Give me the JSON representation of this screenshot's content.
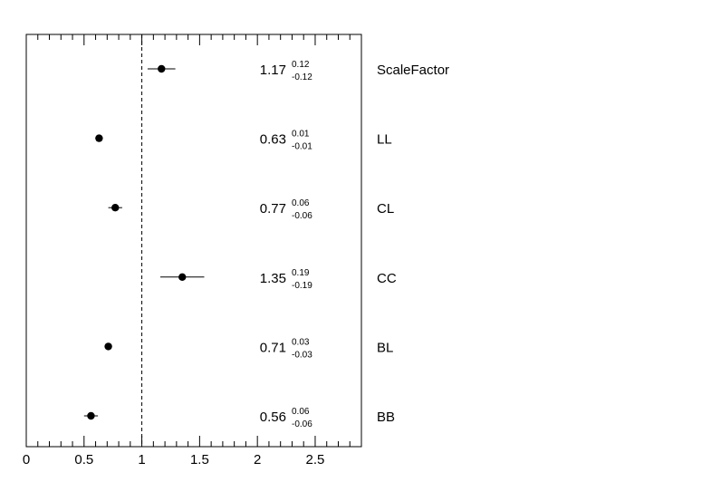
{
  "chart_data": {
    "type": "scatter",
    "title": "",
    "xlabel": "",
    "ylabel": "",
    "xlim": [
      0,
      2.9
    ],
    "x_ticks": [
      0,
      0.5,
      1,
      1.5,
      2,
      2.5
    ],
    "x_tick_labels": [
      "0",
      "0.5",
      "1",
      "1.5",
      "2",
      "2.5"
    ],
    "reference_line": 1,
    "grid": false,
    "points": [
      {
        "label": "ScaleFactor",
        "value": 1.17,
        "err_up": 0.12,
        "err_down": -0.12,
        "value_text": "1.17",
        "err_up_text": "0.12",
        "err_down_text": "-0.12"
      },
      {
        "label": "LL",
        "value": 0.63,
        "err_up": 0.01,
        "err_down": -0.01,
        "value_text": "0.63",
        "err_up_text": "0.01",
        "err_down_text": "-0.01"
      },
      {
        "label": "CL",
        "value": 0.77,
        "err_up": 0.06,
        "err_down": -0.06,
        "value_text": "0.77",
        "err_up_text": "0.06",
        "err_down_text": "-0.06"
      },
      {
        "label": "CC",
        "value": 1.35,
        "err_up": 0.19,
        "err_down": -0.19,
        "value_text": "1.35",
        "err_up_text": "0.19",
        "err_down_text": "-0.19"
      },
      {
        "label": "BL",
        "value": 0.71,
        "err_up": 0.03,
        "err_down": -0.03,
        "value_text": "0.71",
        "err_up_text": "0.03",
        "err_down_text": "-0.03"
      },
      {
        "label": "BB",
        "value": 0.56,
        "err_up": 0.06,
        "err_down": -0.06,
        "value_text": "0.56",
        "err_up_text": "0.06",
        "err_down_text": "-0.06"
      }
    ]
  }
}
